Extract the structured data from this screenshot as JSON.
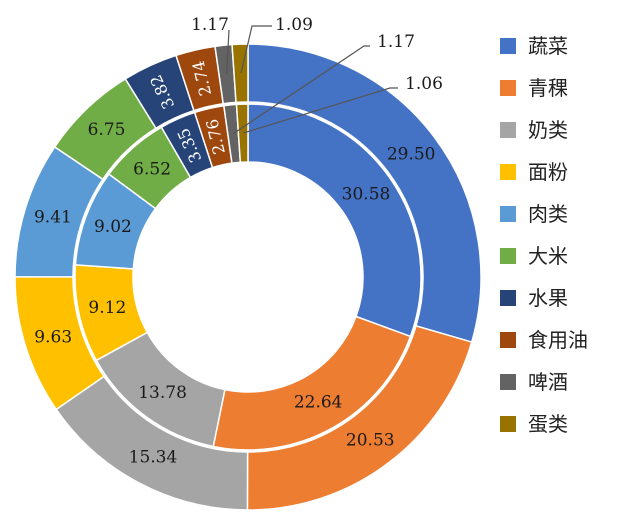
{
  "chart_data": {
    "type": "pie",
    "variant": "double-donut",
    "categories": [
      "蔬菜",
      "青稞",
      "奶类",
      "面粉",
      "肉类",
      "大米",
      "水果",
      "食用油",
      "啤酒",
      "蛋类"
    ],
    "colors": [
      "#4472c4",
      "#ed7d31",
      "#a5a5a5",
      "#ffc000",
      "#5b9bd5",
      "#70ad47",
      "#264478",
      "#9e480e",
      "#636363",
      "#997300"
    ],
    "series": [
      {
        "ring": "outer",
        "values": [
          29.5,
          20.53,
          15.34,
          9.63,
          9.41,
          6.75,
          3.82,
          2.74,
          1.17,
          1.09
        ]
      },
      {
        "ring": "inner",
        "values": [
          30.58,
          22.64,
          13.78,
          9.12,
          9.02,
          6.52,
          3.35,
          2.76,
          1.17,
          1.06
        ]
      }
    ],
    "data_labels": {
      "outer": [
        "29.50",
        "20.53",
        "15.34",
        "9.63",
        "9.41",
        "6.75",
        "3.82",
        "2.74",
        "1.17",
        "1.09"
      ],
      "inner": [
        "30.58",
        "22.64",
        "13.78",
        "9.12",
        "9.02",
        "6.52",
        "3.35",
        "2.76",
        "1.17",
        "1.06"
      ]
    },
    "legend": {
      "position": "right",
      "entries": [
        "蔬菜",
        "青稞",
        "奶类",
        "面粉",
        "肉类",
        "大米",
        "水果",
        "食用油",
        "啤酒",
        "蛋类"
      ]
    }
  }
}
